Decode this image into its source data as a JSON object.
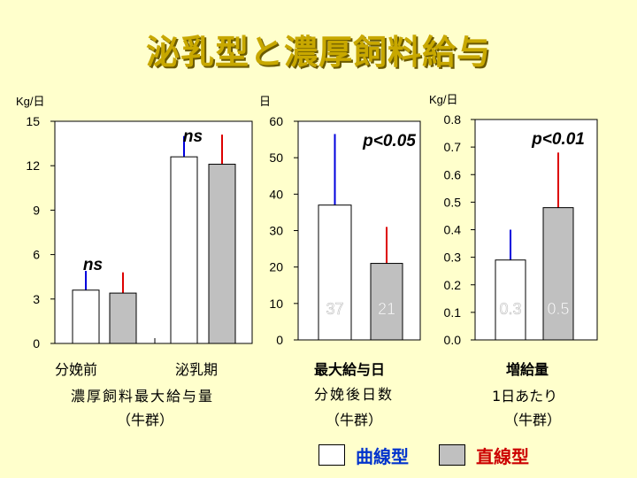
{
  "title": "泌乳型と濃厚飼料給与",
  "colors": {
    "curve": "#ffffff",
    "straight": "#c0c0c0",
    "curve_err": "#0000dd",
    "straight_err": "#dd0000",
    "title": "#c8a800"
  },
  "legend": [
    {
      "label": "曲線型",
      "color": "#0033cc",
      "fill": "#ffffff"
    },
    {
      "label": "直線型",
      "color": "#cc0000",
      "fill": "#c0c0c0"
    }
  ],
  "chart_data": [
    {
      "type": "bar",
      "unit": "Kg/日",
      "ylim": [
        0,
        15
      ],
      "yticks": [
        "0",
        "3",
        "6",
        "9",
        "12",
        "15"
      ],
      "categories": [
        "分娩前",
        "泌乳期"
      ],
      "series": [
        {
          "name": "曲線型",
          "values": [
            3.6,
            12.6
          ],
          "err_top": [
            4.9,
            14.0
          ]
        },
        {
          "name": "直線型",
          "values": [
            3.4,
            12.1
          ],
          "err_top": [
            4.8,
            14.1
          ]
        }
      ],
      "annotations": [
        "ns",
        "ns"
      ],
      "xlabel_lines": [
        "濃厚飼料最大給与量",
        "（牛群）"
      ]
    },
    {
      "type": "bar",
      "unit": "日",
      "ylim": [
        0,
        60
      ],
      "yticks": [
        "0",
        "10",
        "20",
        "30",
        "40",
        "50",
        "60"
      ],
      "series": [
        {
          "name": "曲線型",
          "values": [
            37
          ],
          "err_top": [
            56.5
          ],
          "data_label": "37"
        },
        {
          "name": "直線型",
          "values": [
            21
          ],
          "err_top": [
            31
          ],
          "data_label": "21"
        }
      ],
      "annotation": "p<0.05",
      "xlabel_lines": [
        "最大給与日",
        "分娩後日数",
        "（牛群）"
      ]
    },
    {
      "type": "bar",
      "unit": "Kg/日",
      "ylim": [
        0,
        0.8
      ],
      "yticks": [
        "0.0",
        "0.1",
        "0.2",
        "0.3",
        "0.4",
        "0.5",
        "0.6",
        "0.7",
        "0.8"
      ],
      "series": [
        {
          "name": "曲線型",
          "values": [
            0.29
          ],
          "err_top": [
            0.4
          ],
          "data_label": "0.3"
        },
        {
          "name": "直線型",
          "values": [
            0.48
          ],
          "err_top": [
            0.68
          ],
          "data_label": "0.5"
        }
      ],
      "annotation": "p<0.01",
      "xlabel_lines": [
        "増給量",
        "1日あたり",
        "（牛群）"
      ]
    }
  ]
}
